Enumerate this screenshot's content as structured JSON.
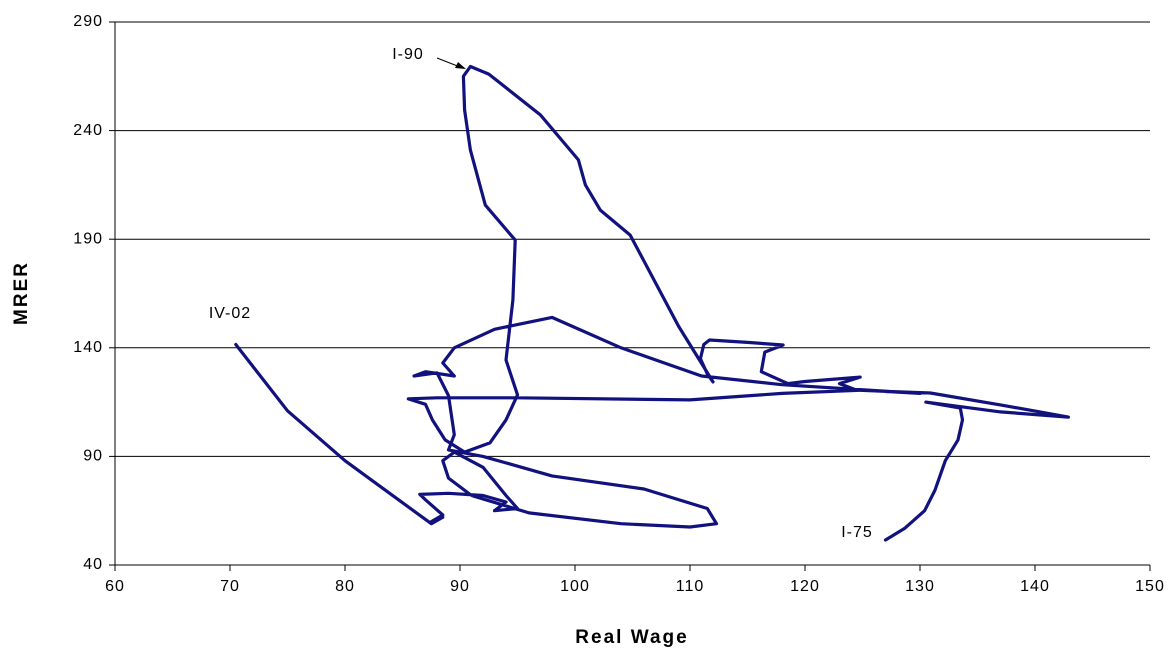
{
  "chart_data": {
    "type": "line",
    "x_label": "Real Wage",
    "y_label": "MRER",
    "annotations": [
      "I-75",
      "I-90",
      "IV-02"
    ],
    "xlim": [
      60,
      150
    ],
    "xticks": [
      60,
      70,
      80,
      90,
      100,
      110,
      120,
      130,
      140,
      150
    ],
    "ylim": [
      40,
      290
    ],
    "yticks": [
      40,
      90,
      140,
      190,
      240,
      290
    ],
    "grid": true,
    "series": [
      {
        "color": "#12127e",
        "x": [
          127.0,
          128.7,
          130.4,
          131.3,
          132.2,
          133.3,
          133.7,
          133.5,
          130.5,
          137,
          142.9,
          137,
          130.9,
          124.5,
          123,
          124.8,
          120,
          118.5,
          116.2,
          116.5,
          118.1,
          115,
          111.7,
          111.2,
          110.9,
          111.5,
          112,
          109,
          104.8,
          102.2,
          100.9,
          100.3,
          97,
          92.5,
          90.9,
          90.3,
          90.4,
          90.9,
          92.2,
          94.8,
          94.6,
          94,
          95,
          94,
          92.6,
          90.4,
          88.7,
          87.6,
          87,
          85.5,
          88,
          95,
          110,
          118,
          125,
          130,
          118,
          111,
          104,
          98,
          93,
          89.5,
          88.5,
          89.5,
          87,
          86,
          88,
          89,
          89.5,
          89,
          92,
          98,
          106,
          111.5,
          112.3,
          110,
          104,
          96,
          91,
          89,
          88.5,
          89.5,
          92,
          94,
          95,
          93,
          94,
          92,
          89,
          86.5,
          87,
          88.5,
          87.5,
          88.5,
          87.5,
          80,
          75,
          70.5
        ],
        "values": [
          51.5,
          57,
          65,
          74.5,
          88,
          97.6,
          106.8,
          112.3,
          115,
          110.5,
          108.1,
          113.7,
          119.2,
          120.5,
          123.5,
          126.5,
          124.5,
          123.5,
          129,
          138,
          141.3,
          142.5,
          143.6,
          141.5,
          135,
          128,
          124.3,
          150,
          191.9,
          203.4,
          215,
          226.5,
          247.2,
          266,
          269.5,
          265,
          249.5,
          231,
          205.7,
          189.6,
          162,
          134.4,
          118.3,
          106.8,
          96.2,
          92,
          97.6,
          106.8,
          114,
          116.5,
          117,
          117,
          116,
          119,
          120.5,
          119,
          123,
          127,
          140,
          154,
          148.5,
          140,
          133,
          127,
          129,
          127,
          128.5,
          118,
          100,
          93,
          90,
          81,
          75,
          66,
          59,
          57.5,
          59,
          64,
          72,
          80,
          88,
          92,
          85,
          72,
          66,
          65,
          69,
          72,
          73,
          72.5,
          70,
          63,
          60,
          62,
          59,
          88,
          111,
          141.5
        ]
      }
    ]
  }
}
